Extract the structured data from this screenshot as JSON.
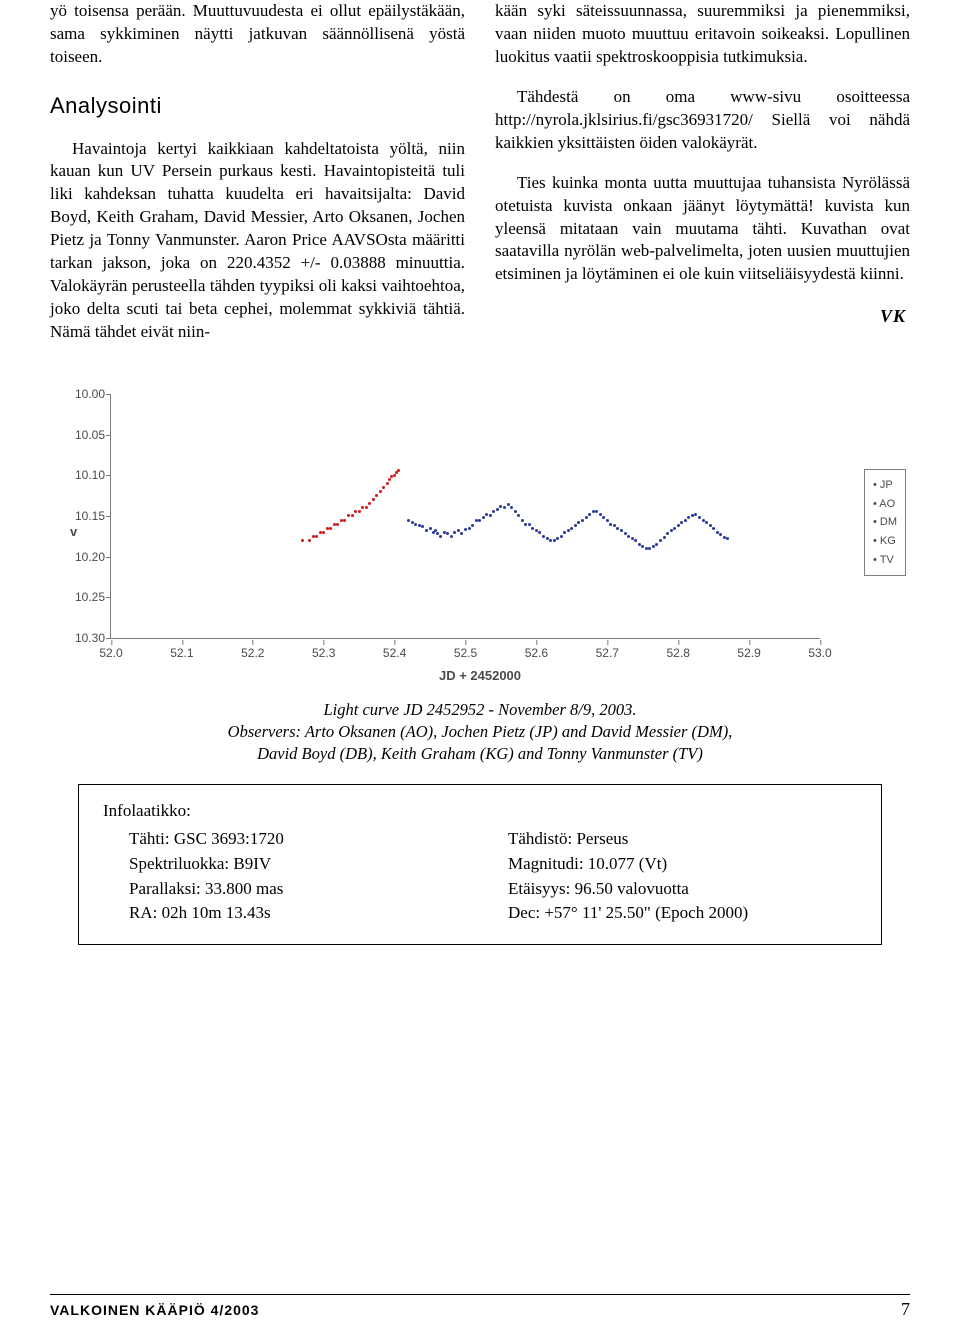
{
  "text": {
    "col1_p1": "yö toisensa perään. Muuttuvuudesta ei ollut epäilystäkään, sama sykkiminen näytti jatkuvan säännöllisenä yöstä toiseen.",
    "col1_h": "Analysointi",
    "col1_p2": "Havaintoja kertyi kaikkiaan kahdeltatoista yöltä, niin kauan kun UV Persein purkaus kesti. Havaintopisteitä tuli liki kahdeksan tuhatta kuudelta eri havaitsijalta: David Boyd, Keith Graham, David Messier, Arto Oksanen, Jochen Pietz ja Tonny Vanmunster. Aaron Price AAVSOsta määritti tarkan jakson, joka on 220.4352 +/- 0.03888 minuuttia. Valokäyrän perusteella tähden tyypiksi oli kaksi vaihtoehtoa, joko delta scuti tai beta cephei, molemmat sykkiviä tähtiä. Nämä tähdet eivät niin-",
    "col2_p1_cont": "kään syki säteissuunnassa, suuremmiksi ja pienemmiksi, vaan niiden muoto muuttuu eritavoin soikeaksi. Lopullinen luokitus vaatii spektroskooppisia tutkimuksia.",
    "col2_p2": "Tähdestä on oma www-sivu osoitteessa http://nyrola.jklsirius.fi/gsc36931720/ Siellä voi nähdä kaikkien yksittäisten öiden valokäyrät.",
    "col2_p3": "Ties kuinka monta uutta muuttujaa tuhansista Nyrölässä otetuista kuvista onkaan jäänyt löytymättä! kuvista kun yleensä mitataan vain muutama tähti. Kuvathan ovat saatavilla nyrölän web-palvelimelta, joten uusien muuttujien etsiminen ja löytäminen ei ole kuin viitseliäisyydestä kiinni.",
    "sig": "VK"
  },
  "chart": {
    "ylabel": "v",
    "xlabel": "JD + 2452000",
    "ylim": [
      10.3,
      10.0
    ],
    "yticks": [
      10.0,
      10.05,
      10.1,
      10.15,
      10.2,
      10.25,
      10.3
    ],
    "xlim": [
      52.0,
      53.0
    ],
    "xticks": [
      52.0,
      52.1,
      52.2,
      52.3,
      52.4,
      52.5,
      52.6,
      52.7,
      52.8,
      52.9,
      53.0
    ],
    "legend": [
      "JP",
      "AO",
      "DM",
      "KG",
      "TV"
    ],
    "series_red_color": "#d01818",
    "series_blue_color": "#2a3a9a",
    "series_red": [
      [
        52.27,
        10.18
      ],
      [
        52.28,
        10.18
      ],
      [
        52.285,
        10.175
      ],
      [
        52.29,
        10.175
      ],
      [
        52.295,
        10.17
      ],
      [
        52.3,
        10.17
      ],
      [
        52.305,
        10.165
      ],
      [
        52.31,
        10.165
      ],
      [
        52.315,
        10.16
      ],
      [
        52.32,
        10.16
      ],
      [
        52.325,
        10.155
      ],
      [
        52.33,
        10.155
      ],
      [
        52.335,
        10.15
      ],
      [
        52.34,
        10.15
      ],
      [
        52.345,
        10.145
      ],
      [
        52.35,
        10.145
      ],
      [
        52.355,
        10.14
      ],
      [
        52.36,
        10.14
      ],
      [
        52.365,
        10.135
      ],
      [
        52.37,
        10.13
      ],
      [
        52.375,
        10.125
      ],
      [
        52.38,
        10.12
      ],
      [
        52.385,
        10.115
      ],
      [
        52.39,
        10.11
      ],
      [
        52.393,
        10.105
      ],
      [
        52.396,
        10.102
      ],
      [
        52.4,
        10.1
      ],
      [
        52.403,
        10.097
      ],
      [
        52.405,
        10.094
      ]
    ],
    "series_blue": [
      [
        52.42,
        10.155
      ],
      [
        52.425,
        10.158
      ],
      [
        52.43,
        10.16
      ],
      [
        52.435,
        10.162
      ],
      [
        52.44,
        10.163
      ],
      [
        52.445,
        10.168
      ],
      [
        52.45,
        10.165
      ],
      [
        52.455,
        10.17
      ],
      [
        52.458,
        10.168
      ],
      [
        52.46,
        10.172
      ],
      [
        52.465,
        10.175
      ],
      [
        52.47,
        10.17
      ],
      [
        52.475,
        10.172
      ],
      [
        52.48,
        10.175
      ],
      [
        52.485,
        10.17
      ],
      [
        52.49,
        10.168
      ],
      [
        52.495,
        10.172
      ],
      [
        52.5,
        10.167
      ],
      [
        52.505,
        10.165
      ],
      [
        52.51,
        10.162
      ],
      [
        52.515,
        10.155
      ],
      [
        52.52,
        10.155
      ],
      [
        52.525,
        10.152
      ],
      [
        52.53,
        10.148
      ],
      [
        52.535,
        10.15
      ],
      [
        52.54,
        10.145
      ],
      [
        52.545,
        10.142
      ],
      [
        52.55,
        10.138
      ],
      [
        52.555,
        10.14
      ],
      [
        52.56,
        10.136
      ],
      [
        52.565,
        10.14
      ],
      [
        52.57,
        10.145
      ],
      [
        52.575,
        10.15
      ],
      [
        52.58,
        10.155
      ],
      [
        52.585,
        10.16
      ],
      [
        52.59,
        10.16
      ],
      [
        52.595,
        10.165
      ],
      [
        52.6,
        10.168
      ],
      [
        52.605,
        10.17
      ],
      [
        52.61,
        10.175
      ],
      [
        52.615,
        10.178
      ],
      [
        52.62,
        10.18
      ],
      [
        52.625,
        10.18
      ],
      [
        52.63,
        10.178
      ],
      [
        52.635,
        10.175
      ],
      [
        52.64,
        10.17
      ],
      [
        52.645,
        10.168
      ],
      [
        52.65,
        10.165
      ],
      [
        52.655,
        10.162
      ],
      [
        52.66,
        10.158
      ],
      [
        52.665,
        10.155
      ],
      [
        52.67,
        10.152
      ],
      [
        52.675,
        10.148
      ],
      [
        52.68,
        10.145
      ],
      [
        52.685,
        10.145
      ],
      [
        52.69,
        10.148
      ],
      [
        52.695,
        10.152
      ],
      [
        52.7,
        10.155
      ],
      [
        52.705,
        10.16
      ],
      [
        52.71,
        10.162
      ],
      [
        52.715,
        10.165
      ],
      [
        52.72,
        10.168
      ],
      [
        52.725,
        10.172
      ],
      [
        52.73,
        10.175
      ],
      [
        52.735,
        10.178
      ],
      [
        52.74,
        10.18
      ],
      [
        52.745,
        10.185
      ],
      [
        52.75,
        10.188
      ],
      [
        52.755,
        10.19
      ],
      [
        52.76,
        10.19
      ],
      [
        52.765,
        10.188
      ],
      [
        52.77,
        10.185
      ],
      [
        52.775,
        10.18
      ],
      [
        52.78,
        10.177
      ],
      [
        52.785,
        10.172
      ],
      [
        52.79,
        10.168
      ],
      [
        52.795,
        10.165
      ],
      [
        52.8,
        10.162
      ],
      [
        52.805,
        10.158
      ],
      [
        52.81,
        10.155
      ],
      [
        52.815,
        10.152
      ],
      [
        52.82,
        10.15
      ],
      [
        52.825,
        10.148
      ],
      [
        52.83,
        10.152
      ],
      [
        52.835,
        10.155
      ],
      [
        52.84,
        10.158
      ],
      [
        52.845,
        10.162
      ],
      [
        52.85,
        10.165
      ],
      [
        52.855,
        10.17
      ],
      [
        52.86,
        10.173
      ],
      [
        52.865,
        10.177
      ],
      [
        52.87,
        10.178
      ]
    ]
  },
  "caption": {
    "l1": "Light curve JD 2452952 - November 8/9, 2003.",
    "l2": "Observers: Arto Oksanen (AO), Jochen Pietz (JP) and David Messier (DM),",
    "l3": "David Boyd (DB), Keith Graham (KG) and Tonny Vanmunster (TV)"
  },
  "infobox": {
    "title": "Infolaatikko:",
    "left": [
      "Tähti: GSC 3693:1720",
      "Spektriluokka: B9IV",
      "Parallaksi: 33.800 mas",
      "RA: 02h 10m 13.43s"
    ],
    "right": [
      "Tähdistö: Perseus",
      "Magnitudi: 10.077 (Vt)",
      "Etäisyys: 96.50 valovuotta",
      "Dec: +57° 11' 25.50\" (Epoch 2000)"
    ]
  },
  "footer": {
    "mag": "VALKOINEN KÄÄPIÖ 4/2003",
    "page": "7"
  }
}
